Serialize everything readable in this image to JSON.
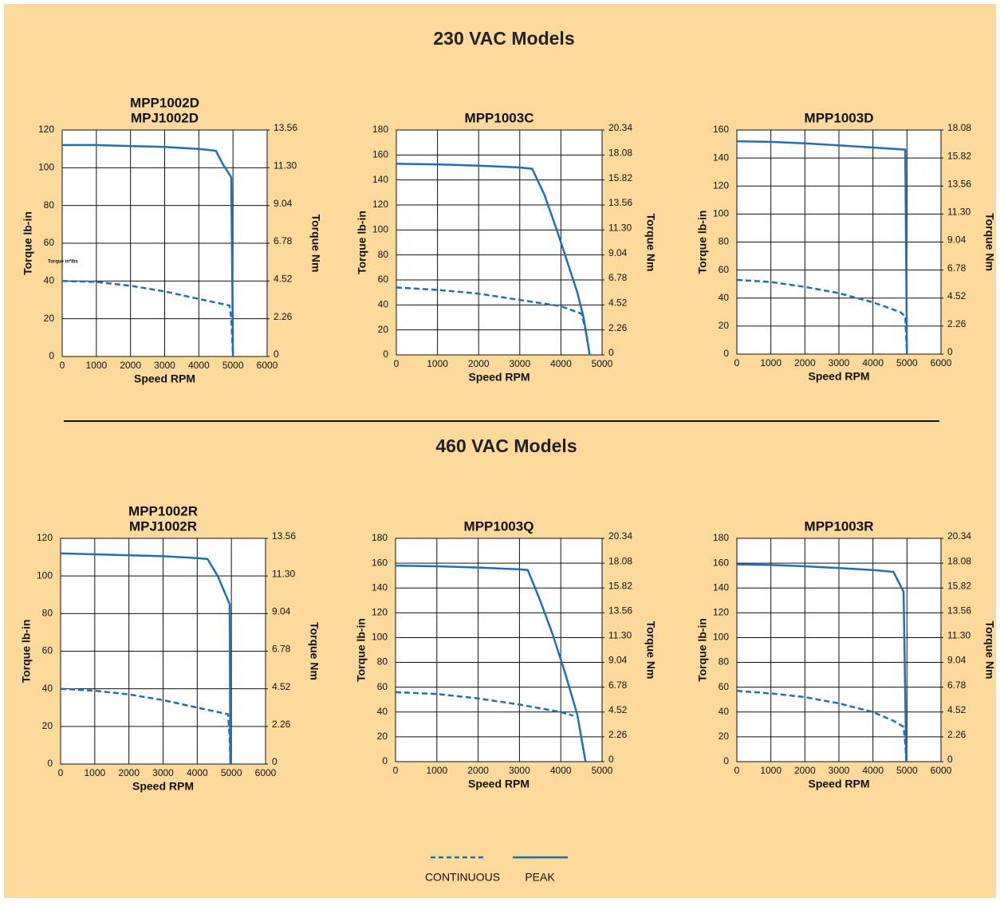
{
  "sections": [
    "230 VAC Models",
    "460 VAC Models"
  ],
  "chart_data": [
    {
      "type": "line",
      "title": [
        "MPP1002D",
        "MPJ1002D"
      ],
      "annotation": "Torque in*lbs",
      "xlabel": "Speed RPM",
      "ylabel": "Torque lb-in",
      "y2label": "Torque Nm",
      "xlim": [
        0,
        6000
      ],
      "xticks": [
        0,
        1000,
        2000,
        3000,
        4000,
        5000,
        6000
      ],
      "ylim": [
        0,
        120
      ],
      "yticks": [
        0,
        20,
        40,
        60,
        80,
        100,
        120
      ],
      "y2lim": [
        0,
        13.56
      ],
      "y2ticks": [
        0,
        2.26,
        4.52,
        6.78,
        9.04,
        {
          "value": 11.3,
          "label": "11.30"
        },
        13.56
      ],
      "grid": true,
      "series": [
        {
          "name": "CONTINUOUS",
          "color": "#1f6fb5",
          "dashed": true,
          "x": [
            0,
            1000,
            2000,
            3000,
            4000,
            4900,
            4950,
            5000
          ],
          "values": [
            40,
            39.5,
            37.5,
            34.5,
            30.5,
            27,
            20,
            0
          ]
        },
        {
          "name": "PEAK",
          "color": "#1f6fb5",
          "dashed": false,
          "x": [
            0,
            1000,
            2000,
            3000,
            4000,
            4500,
            4700,
            4950,
            5000
          ],
          "values": [
            112,
            112,
            111.5,
            111,
            110,
            109,
            102,
            95,
            0
          ]
        }
      ]
    },
    {
      "type": "line",
      "title": [
        "MPP1003C"
      ],
      "xlabel": "Speed RPM",
      "ylabel": "Torque lb-in",
      "y2label": "Torque Nm",
      "xlim": [
        0,
        5000
      ],
      "xticks": [
        0,
        1000,
        2000,
        3000,
        4000,
        5000
      ],
      "ylim": [
        0,
        180
      ],
      "yticks": [
        0,
        20,
        40,
        60,
        80,
        100,
        120,
        140,
        160,
        180
      ],
      "y2lim": [
        0,
        20.34
      ],
      "y2ticks": [
        0,
        2.26,
        4.52,
        6.78,
        9.04,
        {
          "value": 11.3,
          "label": "11.30"
        },
        13.56,
        15.82,
        18.08,
        20.34
      ],
      "grid": true,
      "series": [
        {
          "name": "CONTINUOUS",
          "color": "#1f6fb5",
          "dashed": true,
          "x": [
            0,
            1000,
            2000,
            3000,
            4000,
            4500,
            4600,
            4700
          ],
          "values": [
            54,
            52,
            49,
            44,
            39,
            33,
            20,
            0
          ]
        },
        {
          "name": "PEAK",
          "color": "#1f6fb5",
          "dashed": false,
          "x": [
            0,
            1000,
            2000,
            3000,
            3300,
            3600,
            3900,
            4100,
            4400,
            4550,
            4700
          ],
          "values": [
            153,
            152.5,
            151.5,
            150,
            149,
            128,
            100,
            80,
            50,
            30,
            0
          ]
        }
      ]
    },
    {
      "type": "line",
      "title": [
        "MPP1003D"
      ],
      "xlabel": "Speed RPM",
      "ylabel": "Torque lb-in",
      "y2label": "Torque Nm",
      "xlim": [
        0,
        6000
      ],
      "xticks": [
        0,
        1000,
        2000,
        3000,
        4000,
        5000,
        6000
      ],
      "ylim": [
        0,
        160
      ],
      "yticks": [
        0,
        20,
        40,
        60,
        80,
        100,
        120,
        140,
        160
      ],
      "y2lim": [
        0,
        18.08
      ],
      "y2ticks": [
        0,
        2.26,
        4.52,
        6.78,
        9.04,
        {
          "value": 11.3,
          "label": "11.30"
        },
        13.56,
        15.82,
        18.08
      ],
      "grid": true,
      "series": [
        {
          "name": "CONTINUOUS",
          "color": "#1f6fb5",
          "dashed": true,
          "x": [
            0,
            1000,
            2000,
            3000,
            4000,
            4800,
            4950,
            5000
          ],
          "values": [
            53,
            51.5,
            48,
            43.5,
            37,
            30,
            27,
            0
          ]
        },
        {
          "name": "PEAK",
          "color": "#1f6fb5",
          "dashed": false,
          "x": [
            0,
            1000,
            2000,
            3000,
            4000,
            4950,
            5000
          ],
          "values": [
            152,
            151.5,
            150.5,
            149,
            147.5,
            146,
            0
          ]
        }
      ]
    },
    {
      "type": "line",
      "title": [
        "MPP1002R",
        "MPJ1002R"
      ],
      "xlabel": "Speed RPM",
      "ylabel": "Torque lb-in",
      "y2label": "Torque Nm",
      "xlim": [
        0,
        6000
      ],
      "xticks": [
        0,
        1000,
        2000,
        3000,
        4000,
        5000,
        6000
      ],
      "ylim": [
        0,
        120
      ],
      "yticks": [
        0,
        20,
        40,
        60,
        80,
        100,
        120
      ],
      "y2lim": [
        0,
        13.56
      ],
      "y2ticks": [
        0,
        2.26,
        4.52,
        6.78,
        9.04,
        {
          "value": 11.3,
          "label": "11.30"
        },
        13.56
      ],
      "grid": true,
      "series": [
        {
          "name": "CONTINUOUS",
          "color": "#1f6fb5",
          "dashed": true,
          "x": [
            0,
            1000,
            2000,
            3000,
            4000,
            4900,
            4950,
            4970
          ],
          "values": [
            40,
            39,
            37,
            34,
            30,
            26.5,
            15,
            0
          ]
        },
        {
          "name": "PEAK",
          "color": "#1f6fb5",
          "dashed": false,
          "x": [
            0,
            2000,
            3000,
            4000,
            4300,
            4600,
            4950,
            4970
          ],
          "values": [
            112,
            111,
            110.5,
            109.5,
            109,
            100,
            85,
            0
          ]
        }
      ]
    },
    {
      "type": "line",
      "title": [
        "MPP1003Q"
      ],
      "xlabel": "Speed RPM",
      "ylabel": "Torque lb-in",
      "y2label": "Torque Nm",
      "xlim": [
        0,
        5000
      ],
      "xticks": [
        0,
        1000,
        2000,
        3000,
        4000,
        5000
      ],
      "ylim": [
        0,
        180
      ],
      "yticks": [
        0,
        20,
        40,
        60,
        80,
        100,
        120,
        140,
        160,
        180
      ],
      "y2lim": [
        0,
        20.34
      ],
      "y2ticks": [
        0,
        2.26,
        4.52,
        6.78,
        9.04,
        {
          "value": 11.3,
          "label": "11.30"
        },
        13.56,
        15.82,
        18.08,
        20.34
      ],
      "grid": true,
      "series": [
        {
          "name": "CONTINUOUS",
          "color": "#1f6fb5",
          "dashed": true,
          "x": [
            0,
            1000,
            2000,
            3000,
            4000,
            4300
          ],
          "values": [
            56,
            54.5,
            51,
            46,
            40,
            37
          ]
        },
        {
          "name": "PEAK",
          "color": "#1f6fb5",
          "dashed": false,
          "x": [
            0,
            1000,
            2000,
            3000,
            3200,
            3500,
            3800,
            4100,
            4400,
            4600
          ],
          "values": [
            158,
            157.5,
            156.5,
            155,
            154.5,
            130,
            103,
            72,
            38,
            0
          ]
        }
      ]
    },
    {
      "type": "line",
      "title": [
        "MPP1003R"
      ],
      "xlabel": "Speed RPM",
      "ylabel": "Torque lb-in",
      "y2label": "Torque Nm",
      "xlim": [
        0,
        6000
      ],
      "xticks": [
        0,
        1000,
        2000,
        3000,
        4000,
        5000,
        6000
      ],
      "ylim": [
        0,
        180
      ],
      "yticks": [
        0,
        20,
        40,
        60,
        80,
        100,
        120,
        140,
        160,
        180
      ],
      "y2lim": [
        0,
        20.34
      ],
      "y2ticks": [
        0,
        2.26,
        4.52,
        6.78,
        9.04,
        {
          "value": 11.3,
          "label": "11.30"
        },
        13.56,
        15.82,
        18.08,
        20.34
      ],
      "grid": true,
      "series": [
        {
          "name": "CONTINUOUS",
          "color": "#1f6fb5",
          "dashed": true,
          "x": [
            0,
            1000,
            2000,
            3000,
            4000,
            4600,
            4900,
            4950,
            4980
          ],
          "values": [
            57,
            55,
            52,
            47,
            40,
            33,
            28,
            15,
            0
          ]
        },
        {
          "name": "PEAK",
          "color": "#1f6fb5",
          "dashed": false,
          "x": [
            0,
            1000,
            2000,
            3000,
            4000,
            4600,
            4900,
            4980
          ],
          "values": [
            159,
            158.5,
            157.5,
            156,
            154.5,
            153,
            137,
            0
          ]
        }
      ]
    }
  ]
}
